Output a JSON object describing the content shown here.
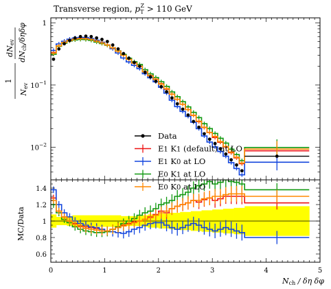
{
  "chart_data": {
    "type": "line",
    "title": "Transverse region, p_T^Z > 110 GeV",
    "title_parts": {
      "text": "Transverse region, ",
      "symbol": "p",
      "sub": "T",
      "sup": "Z",
      "rest": " > 110 GeV"
    },
    "xlabel": "N_ch / δη δφ",
    "xlabel_parts": {
      "n": "N",
      "sub": "ch",
      "rest": " / δη δφ"
    },
    "ylabel_top": "1/N_ev dN_ev / dN_ch/δηδφ",
    "ylabel_top_parts": {
      "one": "1",
      "nev": "N",
      "nev_sub": "ev",
      "dn": "dN",
      "dn_sub": "ev",
      "dnch": "dN",
      "dnch_sub": "ch",
      "rest": "/δηδφ"
    },
    "ylabel_bottom": "MC/Data",
    "xlim": [
      0,
      5
    ],
    "ylim_top": [
      0.003,
      1.2
    ],
    "ylog_top": true,
    "ylim_bottom": [
      0.5,
      1.5
    ],
    "x_ticks": [
      "0",
      "1",
      "2",
      "3",
      "4",
      "5"
    ],
    "y_ticks_top": [
      "1",
      "10^-1",
      "10^-2"
    ],
    "y_ticks_bottom": [
      "0.6",
      "0.8",
      "1",
      "1.2",
      "1.4"
    ],
    "legend_placement": "lower-center",
    "bin_edges": [
      0.0,
      0.1,
      0.2,
      0.3,
      0.4,
      0.5,
      0.6,
      0.7,
      0.8,
      0.9,
      1.0,
      1.1,
      1.2,
      1.3,
      1.4,
      1.5,
      1.6,
      1.7,
      1.8,
      1.9,
      2.0,
      2.1,
      2.2,
      2.3,
      2.4,
      2.5,
      2.6,
      2.7,
      2.8,
      2.9,
      3.0,
      3.1,
      3.2,
      3.3,
      3.4,
      3.5,
      3.6,
      4.8
    ],
    "data": {
      "name": "Data",
      "color": "#000000",
      "x": [
        0.05,
        0.15,
        0.25,
        0.35,
        0.45,
        0.55,
        0.65,
        0.75,
        0.85,
        0.95,
        1.05,
        1.15,
        1.25,
        1.35,
        1.45,
        1.55,
        1.65,
        1.75,
        1.85,
        1.95,
        2.05,
        2.15,
        2.25,
        2.35,
        2.45,
        2.55,
        2.65,
        2.75,
        2.85,
        2.95,
        3.05,
        3.15,
        3.25,
        3.35,
        3.45,
        3.55,
        4.2
      ],
      "y": [
        0.26,
        0.38,
        0.46,
        0.52,
        0.57,
        0.6,
        0.61,
        0.6,
        0.57,
        0.54,
        0.5,
        0.44,
        0.38,
        0.32,
        0.27,
        0.23,
        0.2,
        0.16,
        0.135,
        0.115,
        0.094,
        0.078,
        0.062,
        0.05,
        0.041,
        0.033,
        0.026,
        0.021,
        0.0165,
        0.0135,
        0.0115,
        0.0095,
        0.0078,
        0.0063,
        0.0052,
        0.0042,
        0.0072
      ],
      "ratio_band_lo": [
        0.92,
        0.95,
        0.95,
        0.94,
        0.93,
        0.93,
        0.93,
        0.93,
        0.93,
        0.93,
        0.93,
        0.93,
        0.93,
        0.94,
        0.94,
        0.94,
        0.94,
        0.93,
        0.92,
        0.92,
        0.91,
        0.91,
        0.9,
        0.9,
        0.89,
        0.89,
        0.88,
        0.88,
        0.87,
        0.87,
        0.86,
        0.86,
        0.85,
        0.85,
        0.84,
        0.84,
        0.82
      ],
      "ratio_band_hi": [
        1.08,
        1.05,
        1.05,
        1.06,
        1.07,
        1.07,
        1.07,
        1.07,
        1.07,
        1.07,
        1.07,
        1.07,
        1.07,
        1.06,
        1.06,
        1.06,
        1.06,
        1.07,
        1.08,
        1.08,
        1.09,
        1.09,
        1.1,
        1.1,
        1.11,
        1.11,
        1.12,
        1.12,
        1.13,
        1.13,
        1.14,
        1.14,
        1.15,
        1.15,
        1.16,
        1.16,
        1.18
      ]
    },
    "series": [
      {
        "name": "E1 K1 (default) at LO",
        "label_parts": [
          "E",
          "1",
          " K",
          "1",
          " (default) at LO"
        ],
        "color": "#ee1111",
        "ratio": [
          1.28,
          1.12,
          1.05,
          1.0,
          0.97,
          0.94,
          0.93,
          0.92,
          0.91,
          0.9,
          0.88,
          0.9,
          0.93,
          0.95,
          0.97,
          0.99,
          1.0,
          1.02,
          1.05,
          1.08,
          1.12,
          1.1,
          1.15,
          1.18,
          1.2,
          1.22,
          1.25,
          1.23,
          1.26,
          1.28,
          1.25,
          1.27,
          1.3,
          1.3,
          1.3,
          1.3,
          1.22
        ]
      },
      {
        "name": "E1 K0 at LO",
        "label_parts": [
          "E",
          "1",
          " K",
          "0",
          " at LO"
        ],
        "color": "#1144dd",
        "ratio": [
          1.38,
          1.2,
          1.1,
          1.05,
          1.0,
          0.97,
          0.95,
          0.93,
          0.92,
          0.9,
          0.88,
          0.87,
          0.86,
          0.85,
          0.87,
          0.9,
          0.92,
          0.95,
          0.97,
          0.98,
          0.98,
          0.95,
          0.92,
          0.9,
          0.92,
          0.95,
          0.97,
          0.95,
          0.92,
          0.9,
          0.88,
          0.9,
          0.92,
          0.9,
          0.88,
          0.86,
          0.8
        ]
      },
      {
        "name": "E0 K1 at LO",
        "label_parts": [
          "E",
          "0",
          " K",
          "1",
          " at LO"
        ],
        "color": "#119911",
        "ratio": [
          1.2,
          1.1,
          1.02,
          0.98,
          0.93,
          0.9,
          0.88,
          0.87,
          0.86,
          0.86,
          0.87,
          0.9,
          0.93,
          0.97,
          1.0,
          1.03,
          1.07,
          1.1,
          1.12,
          1.15,
          1.2,
          1.22,
          1.25,
          1.3,
          1.32,
          1.35,
          1.4,
          1.43,
          1.45,
          1.48,
          1.45,
          1.47,
          1.5,
          1.48,
          1.47,
          1.45,
          1.38
        ]
      },
      {
        "name": "E0 K0 at LO",
        "label_parts": [
          "E",
          "0",
          " K",
          "0",
          " at LO"
        ],
        "color": "#ff8800",
        "ratio": [
          1.25,
          1.12,
          1.05,
          1.0,
          0.96,
          0.93,
          0.91,
          0.9,
          0.89,
          0.88,
          0.88,
          0.9,
          0.92,
          0.94,
          0.96,
          0.98,
          1.0,
          1.02,
          1.04,
          1.07,
          1.1,
          1.12,
          1.15,
          1.18,
          1.2,
          1.22,
          1.25,
          1.25,
          1.27,
          1.28,
          1.3,
          1.3,
          1.32,
          1.33,
          1.33,
          1.33,
          1.3
        ]
      }
    ]
  }
}
